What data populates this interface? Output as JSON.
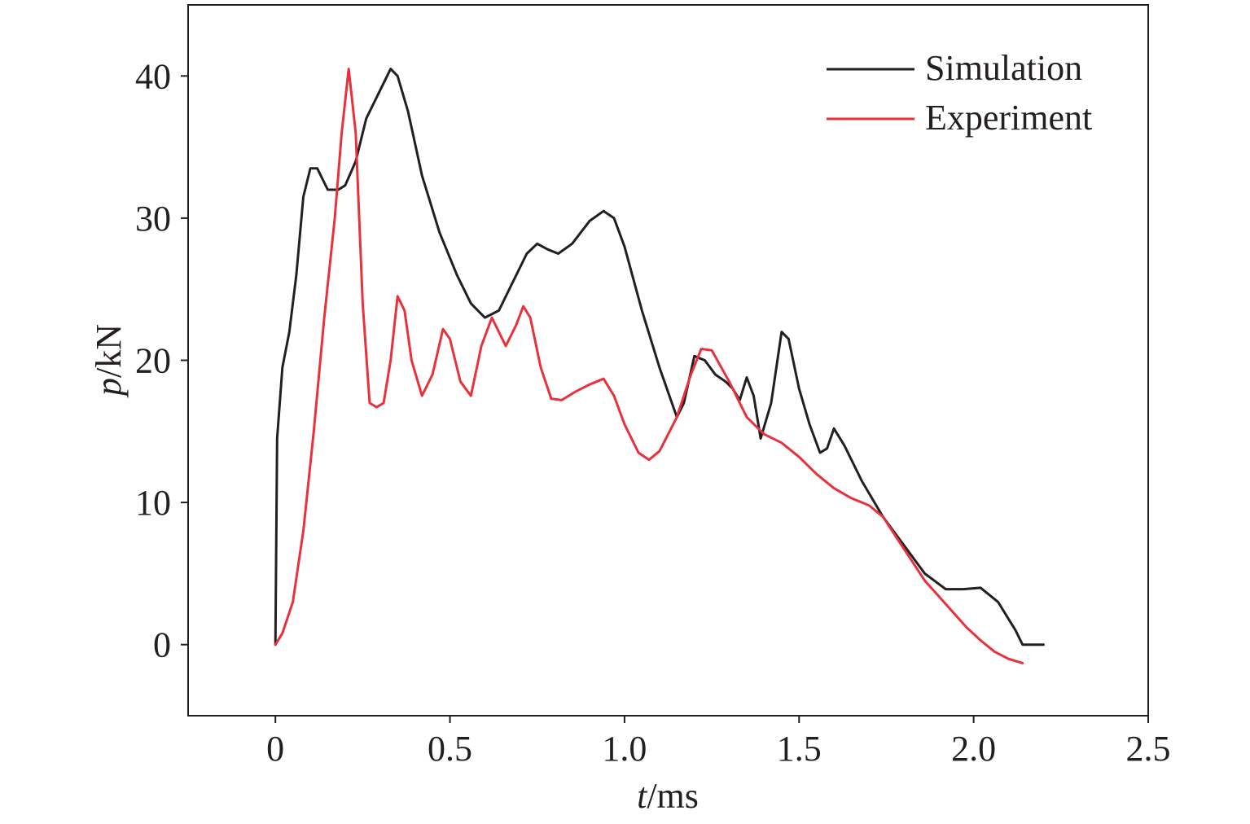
{
  "chart_data": {
    "type": "line",
    "xlabel_var": "t",
    "xlabel_unit": "/ms",
    "ylabel_var": "p",
    "ylabel_unit": "/kN",
    "xlim": [
      -0.25,
      2.5
    ],
    "ylim": [
      -5,
      45
    ],
    "xticks": [
      0,
      0.5,
      1.0,
      1.5,
      2.0,
      2.5
    ],
    "xtick_labels": [
      "0",
      "0.5",
      "1.0",
      "1.5",
      "2.0",
      "2.5"
    ],
    "yticks": [
      0,
      10,
      20,
      30,
      40
    ],
    "ytick_labels": [
      "0",
      "10",
      "20",
      "30",
      "40"
    ],
    "grid": false,
    "legend_position": "top-right",
    "series": [
      {
        "name": "Simulation",
        "color": "#231f20",
        "points": [
          [
            0.0,
            0.0
          ],
          [
            0.005,
            14.5
          ],
          [
            0.02,
            19.5
          ],
          [
            0.04,
            22.0
          ],
          [
            0.06,
            26.0
          ],
          [
            0.08,
            31.5
          ],
          [
            0.1,
            33.5
          ],
          [
            0.12,
            33.5
          ],
          [
            0.15,
            32.0
          ],
          [
            0.18,
            32.0
          ],
          [
            0.2,
            32.3
          ],
          [
            0.23,
            34.0
          ],
          [
            0.26,
            37.0
          ],
          [
            0.3,
            39.0
          ],
          [
            0.33,
            40.5
          ],
          [
            0.35,
            40.0
          ],
          [
            0.38,
            37.5
          ],
          [
            0.42,
            33.0
          ],
          [
            0.47,
            29.0
          ],
          [
            0.52,
            26.0
          ],
          [
            0.56,
            24.0
          ],
          [
            0.6,
            23.0
          ],
          [
            0.64,
            23.5
          ],
          [
            0.68,
            25.5
          ],
          [
            0.72,
            27.5
          ],
          [
            0.75,
            28.2
          ],
          [
            0.78,
            27.8
          ],
          [
            0.81,
            27.5
          ],
          [
            0.85,
            28.2
          ],
          [
            0.9,
            29.8
          ],
          [
            0.94,
            30.5
          ],
          [
            0.97,
            30.0
          ],
          [
            1.0,
            28.0
          ],
          [
            1.05,
            23.5
          ],
          [
            1.1,
            19.5
          ],
          [
            1.15,
            16.0
          ],
          [
            1.17,
            17.0
          ],
          [
            1.2,
            20.3
          ],
          [
            1.23,
            20.0
          ],
          [
            1.26,
            19.0
          ],
          [
            1.29,
            18.5
          ],
          [
            1.31,
            18.0
          ],
          [
            1.33,
            17.2
          ],
          [
            1.35,
            18.8
          ],
          [
            1.37,
            17.5
          ],
          [
            1.39,
            14.5
          ],
          [
            1.42,
            17.0
          ],
          [
            1.45,
            22.0
          ],
          [
            1.47,
            21.5
          ],
          [
            1.5,
            18.0
          ],
          [
            1.53,
            15.5
          ],
          [
            1.56,
            13.5
          ],
          [
            1.58,
            13.8
          ],
          [
            1.6,
            15.2
          ],
          [
            1.63,
            14.0
          ],
          [
            1.68,
            11.5
          ],
          [
            1.74,
            9.0
          ],
          [
            1.8,
            7.0
          ],
          [
            1.86,
            5.0
          ],
          [
            1.92,
            3.9
          ],
          [
            1.97,
            3.9
          ],
          [
            2.02,
            4.0
          ],
          [
            2.07,
            3.0
          ],
          [
            2.12,
            1.0
          ],
          [
            2.14,
            0.0
          ],
          [
            2.2,
            0.0
          ]
        ]
      },
      {
        "name": "Experiment",
        "color": "#e8313b",
        "points": [
          [
            0.0,
            0.0
          ],
          [
            0.02,
            0.8
          ],
          [
            0.05,
            3.0
          ],
          [
            0.08,
            8.0
          ],
          [
            0.11,
            15.0
          ],
          [
            0.14,
            23.0
          ],
          [
            0.17,
            30.0
          ],
          [
            0.19,
            36.0
          ],
          [
            0.21,
            40.5
          ],
          [
            0.23,
            36.0
          ],
          [
            0.25,
            24.0
          ],
          [
            0.27,
            17.0
          ],
          [
            0.29,
            16.7
          ],
          [
            0.31,
            17.0
          ],
          [
            0.33,
            20.0
          ],
          [
            0.35,
            24.5
          ],
          [
            0.37,
            23.5
          ],
          [
            0.39,
            20.0
          ],
          [
            0.42,
            17.5
          ],
          [
            0.45,
            19.0
          ],
          [
            0.48,
            22.2
          ],
          [
            0.5,
            21.5
          ],
          [
            0.53,
            18.5
          ],
          [
            0.56,
            17.5
          ],
          [
            0.59,
            21.0
          ],
          [
            0.62,
            23.0
          ],
          [
            0.66,
            21.0
          ],
          [
            0.69,
            22.5
          ],
          [
            0.71,
            23.8
          ],
          [
            0.73,
            23.0
          ],
          [
            0.76,
            19.5
          ],
          [
            0.79,
            17.3
          ],
          [
            0.82,
            17.2
          ],
          [
            0.86,
            17.8
          ],
          [
            0.9,
            18.3
          ],
          [
            0.94,
            18.7
          ],
          [
            0.97,
            17.5
          ],
          [
            1.0,
            15.5
          ],
          [
            1.04,
            13.5
          ],
          [
            1.07,
            13.0
          ],
          [
            1.1,
            13.6
          ],
          [
            1.15,
            16.0
          ],
          [
            1.19,
            19.0
          ],
          [
            1.22,
            20.8
          ],
          [
            1.25,
            20.7
          ],
          [
            1.3,
            18.5
          ],
          [
            1.35,
            16.0
          ],
          [
            1.4,
            14.8
          ],
          [
            1.45,
            14.2
          ],
          [
            1.5,
            13.2
          ],
          [
            1.55,
            12.0
          ],
          [
            1.6,
            11.0
          ],
          [
            1.65,
            10.3
          ],
          [
            1.7,
            9.8
          ],
          [
            1.74,
            9.0
          ],
          [
            1.78,
            7.5
          ],
          [
            1.82,
            6.0
          ],
          [
            1.86,
            4.5
          ],
          [
            1.9,
            3.4
          ],
          [
            1.94,
            2.3
          ],
          [
            1.98,
            1.2
          ],
          [
            2.02,
            0.3
          ],
          [
            2.06,
            -0.5
          ],
          [
            2.1,
            -1.0
          ],
          [
            2.14,
            -1.3
          ]
        ]
      }
    ]
  }
}
